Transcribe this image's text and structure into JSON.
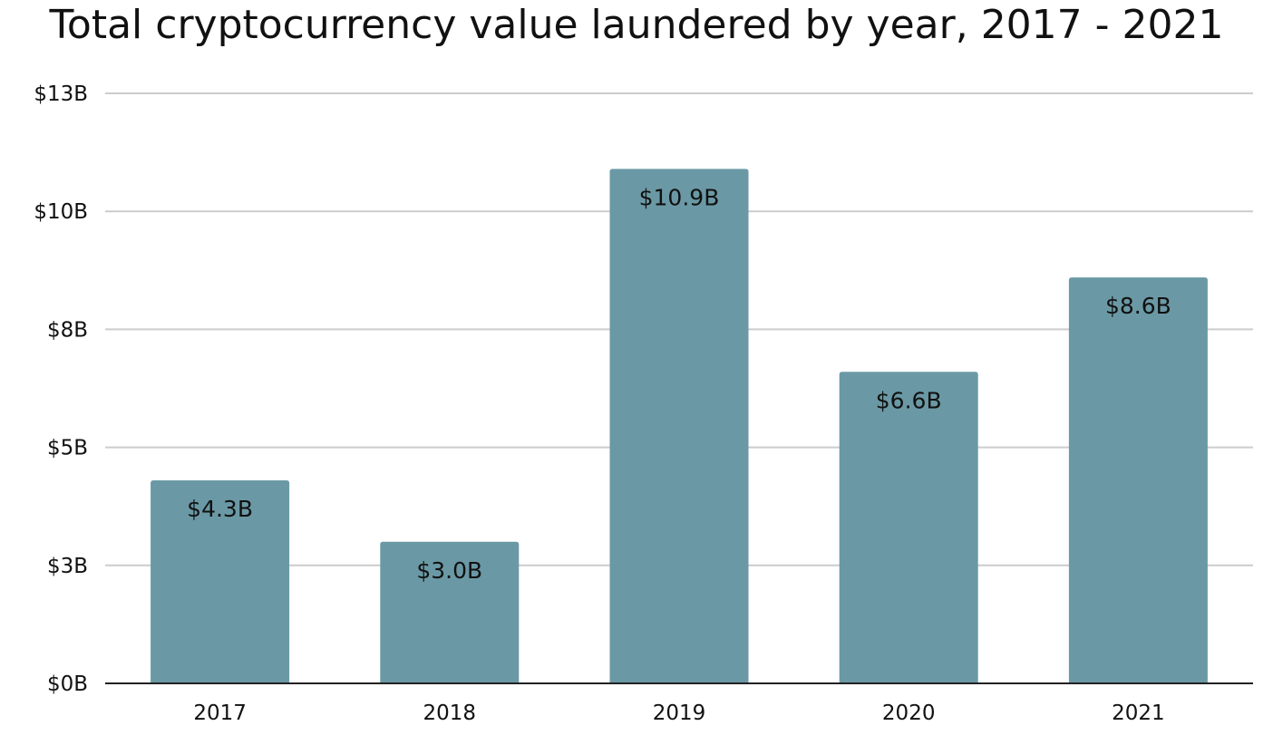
{
  "chart_data": {
    "type": "bar",
    "title": "Total cryptocurrency value laundered by year, 2017 - 2021",
    "xlabel": "",
    "ylabel": "",
    "categories": [
      "2017",
      "2018",
      "2019",
      "2020",
      "2021"
    ],
    "values": [
      4.3,
      3.0,
      10.9,
      6.6,
      8.6
    ],
    "data_labels": [
      "$4.3B",
      "$3.0B",
      "$10.9B",
      "$6.6B",
      "$8.6B"
    ],
    "yticks": [
      {
        "value": 0,
        "label": "$0B"
      },
      {
        "value": 2.5,
        "label": "$3B"
      },
      {
        "value": 5,
        "label": "$5B"
      },
      {
        "value": 7.5,
        "label": "$8B"
      },
      {
        "value": 10,
        "label": "$10B"
      },
      {
        "value": 12.5,
        "label": "$13B"
      }
    ],
    "ylim": [
      0,
      12.5
    ],
    "grid": true,
    "legend": "none",
    "colors": {
      "bar": "#6a99a5",
      "grid": "#cccccc",
      "axis": "#222222",
      "text": "#111111"
    }
  }
}
